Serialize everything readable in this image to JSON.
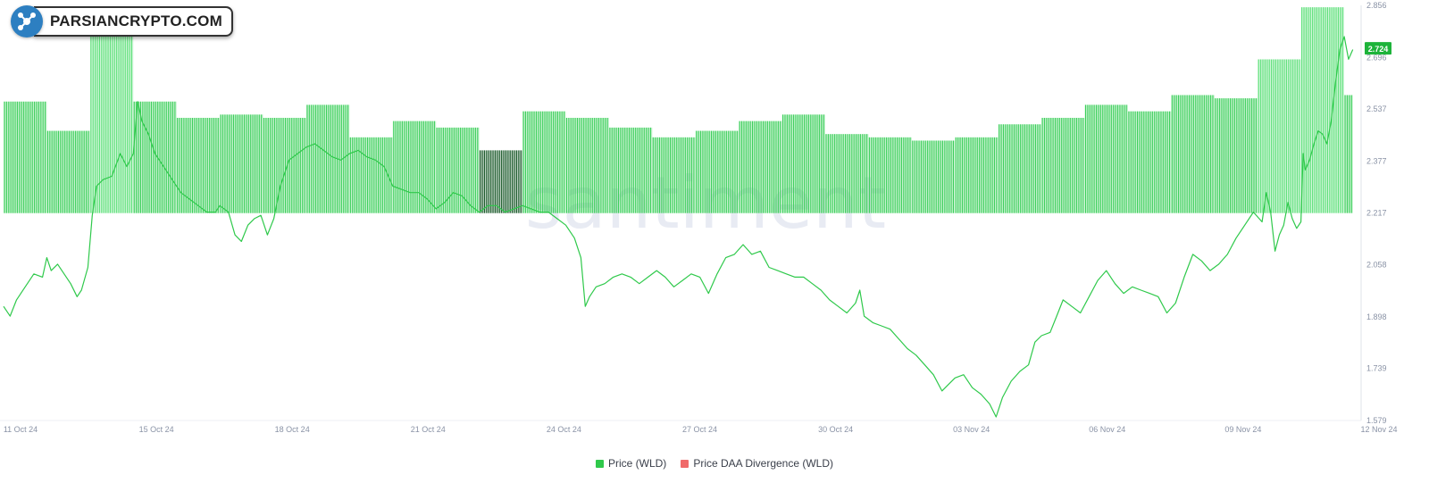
{
  "brand": {
    "text": "PARSIANCRYPTO.COM"
  },
  "watermark": "santiment",
  "colors": {
    "price": "#2fc94b",
    "price_label_bg": "#1db33a",
    "divergence_positive": "#3ccf5b",
    "divergence_strong": "#5ee07a",
    "divergence_dark": "#1a5a2a",
    "divergence_negative": "#f06a6a"
  },
  "chart_data": {
    "type": "line",
    "title": "",
    "xlabel": "",
    "ylabel": "",
    "x_ticks": [
      "11 Oct 24",
      "15 Oct 24",
      "18 Oct 24",
      "21 Oct 24",
      "24 Oct 24",
      "27 Oct 24",
      "30 Oct 24",
      "03 Nov 24",
      "06 Nov 24",
      "09 Nov 24",
      "12 Nov 24"
    ],
    "y_ticks": [
      "2.856",
      "2.696",
      "2.537",
      "2.377",
      "2.217",
      "2.058",
      "1.898",
      "1.739",
      "1.579"
    ],
    "ylim": [
      1.579,
      2.856
    ],
    "current_price_label": "2.724",
    "legend_position": "bottom-center",
    "series": [
      {
        "name": "Price (WLD)",
        "color": "#2fc94b",
        "points": [
          [
            0,
            1.93
          ],
          [
            0.15,
            1.9
          ],
          [
            0.3,
            1.95
          ],
          [
            0.5,
            1.99
          ],
          [
            0.7,
            2.03
          ],
          [
            0.9,
            2.02
          ],
          [
            1.0,
            2.08
          ],
          [
            1.1,
            2.04
          ],
          [
            1.25,
            2.06
          ],
          [
            1.4,
            2.03
          ],
          [
            1.55,
            2.0
          ],
          [
            1.7,
            1.96
          ],
          [
            1.8,
            1.98
          ],
          [
            1.95,
            2.05
          ],
          [
            2.05,
            2.21
          ],
          [
            2.15,
            2.3
          ],
          [
            2.3,
            2.32
          ],
          [
            2.5,
            2.33
          ],
          [
            2.7,
            2.4
          ],
          [
            2.85,
            2.36
          ],
          [
            3.0,
            2.4
          ],
          [
            3.1,
            2.56
          ],
          [
            3.2,
            2.5
          ],
          [
            3.35,
            2.46
          ],
          [
            3.5,
            2.4
          ],
          [
            3.7,
            2.36
          ],
          [
            3.9,
            2.32
          ],
          [
            4.1,
            2.28
          ],
          [
            4.3,
            2.26
          ],
          [
            4.5,
            2.24
          ],
          [
            4.7,
            2.22
          ],
          [
            4.9,
            2.22
          ],
          [
            5.0,
            2.24
          ],
          [
            5.2,
            2.22
          ],
          [
            5.35,
            2.15
          ],
          [
            5.5,
            2.13
          ],
          [
            5.65,
            2.18
          ],
          [
            5.8,
            2.2
          ],
          [
            5.95,
            2.21
          ],
          [
            6.1,
            2.15
          ],
          [
            6.25,
            2.2
          ],
          [
            6.4,
            2.3
          ],
          [
            6.6,
            2.38
          ],
          [
            6.8,
            2.4
          ],
          [
            7.0,
            2.42
          ],
          [
            7.2,
            2.43
          ],
          [
            7.4,
            2.41
          ],
          [
            7.6,
            2.39
          ],
          [
            7.8,
            2.38
          ],
          [
            8.0,
            2.4
          ],
          [
            8.2,
            2.41
          ],
          [
            8.4,
            2.39
          ],
          [
            8.6,
            2.38
          ],
          [
            8.8,
            2.36
          ],
          [
            9.0,
            2.3
          ],
          [
            9.2,
            2.29
          ],
          [
            9.4,
            2.28
          ],
          [
            9.6,
            2.28
          ],
          [
            9.8,
            2.26
          ],
          [
            10.0,
            2.23
          ],
          [
            10.2,
            2.25
          ],
          [
            10.4,
            2.28
          ],
          [
            10.6,
            2.27
          ],
          [
            10.8,
            2.24
          ],
          [
            11.0,
            2.22
          ],
          [
            11.2,
            2.24
          ],
          [
            11.4,
            2.24
          ],
          [
            11.6,
            2.22
          ],
          [
            11.8,
            2.23
          ],
          [
            12.0,
            2.24
          ],
          [
            12.2,
            2.23
          ],
          [
            12.4,
            2.22
          ],
          [
            12.6,
            2.22
          ],
          [
            12.8,
            2.2
          ],
          [
            13.0,
            2.18
          ],
          [
            13.2,
            2.14
          ],
          [
            13.35,
            2.08
          ],
          [
            13.45,
            1.93
          ],
          [
            13.55,
            1.96
          ],
          [
            13.7,
            1.99
          ],
          [
            13.9,
            2.0
          ],
          [
            14.1,
            2.02
          ],
          [
            14.3,
            2.03
          ],
          [
            14.5,
            2.02
          ],
          [
            14.7,
            2.0
          ],
          [
            14.9,
            2.02
          ],
          [
            15.1,
            2.04
          ],
          [
            15.3,
            2.02
          ],
          [
            15.5,
            1.99
          ],
          [
            15.7,
            2.01
          ],
          [
            15.9,
            2.03
          ],
          [
            16.1,
            2.02
          ],
          [
            16.3,
            1.97
          ],
          [
            16.5,
            2.03
          ],
          [
            16.7,
            2.08
          ],
          [
            16.9,
            2.09
          ],
          [
            17.1,
            2.12
          ],
          [
            17.3,
            2.09
          ],
          [
            17.5,
            2.1
          ],
          [
            17.7,
            2.05
          ],
          [
            17.9,
            2.04
          ],
          [
            18.1,
            2.03
          ],
          [
            18.3,
            2.02
          ],
          [
            18.5,
            2.02
          ],
          [
            18.7,
            2.0
          ],
          [
            18.9,
            1.98
          ],
          [
            19.1,
            1.95
          ],
          [
            19.3,
            1.93
          ],
          [
            19.5,
            1.91
          ],
          [
            19.7,
            1.94
          ],
          [
            19.8,
            1.98
          ],
          [
            19.9,
            1.9
          ],
          [
            20.1,
            1.88
          ],
          [
            20.3,
            1.87
          ],
          [
            20.5,
            1.86
          ],
          [
            20.7,
            1.83
          ],
          [
            20.9,
            1.8
          ],
          [
            21.1,
            1.78
          ],
          [
            21.3,
            1.75
          ],
          [
            21.5,
            1.72
          ],
          [
            21.7,
            1.67
          ],
          [
            21.85,
            1.69
          ],
          [
            22.0,
            1.71
          ],
          [
            22.2,
            1.72
          ],
          [
            22.4,
            1.68
          ],
          [
            22.6,
            1.66
          ],
          [
            22.8,
            1.63
          ],
          [
            22.95,
            1.59
          ],
          [
            23.1,
            1.65
          ],
          [
            23.3,
            1.7
          ],
          [
            23.5,
            1.73
          ],
          [
            23.7,
            1.75
          ],
          [
            23.85,
            1.82
          ],
          [
            24.0,
            1.84
          ],
          [
            24.2,
            1.85
          ],
          [
            24.35,
            1.9
          ],
          [
            24.5,
            1.95
          ],
          [
            24.7,
            1.93
          ],
          [
            24.9,
            1.91
          ],
          [
            25.1,
            1.96
          ],
          [
            25.3,
            2.01
          ],
          [
            25.5,
            2.04
          ],
          [
            25.7,
            2.0
          ],
          [
            25.9,
            1.97
          ],
          [
            26.1,
            1.99
          ],
          [
            26.3,
            1.98
          ],
          [
            26.5,
            1.97
          ],
          [
            26.7,
            1.96
          ],
          [
            26.9,
            1.91
          ],
          [
            27.1,
            1.94
          ],
          [
            27.3,
            2.02
          ],
          [
            27.5,
            2.09
          ],
          [
            27.7,
            2.07
          ],
          [
            27.9,
            2.04
          ],
          [
            28.1,
            2.06
          ],
          [
            28.3,
            2.09
          ],
          [
            28.5,
            2.14
          ],
          [
            28.7,
            2.18
          ],
          [
            28.9,
            2.22
          ],
          [
            29.1,
            2.19
          ],
          [
            29.2,
            2.28
          ],
          [
            29.3,
            2.22
          ],
          [
            29.4,
            2.1
          ],
          [
            29.5,
            2.15
          ],
          [
            29.6,
            2.18
          ],
          [
            29.7,
            2.25
          ],
          [
            29.8,
            2.2
          ],
          [
            29.9,
            2.17
          ],
          [
            30.0,
            2.19
          ],
          [
            30.05,
            2.4
          ],
          [
            30.1,
            2.35
          ],
          [
            30.2,
            2.38
          ],
          [
            30.3,
            2.43
          ],
          [
            30.4,
            2.47
          ],
          [
            30.5,
            2.46
          ],
          [
            30.6,
            2.43
          ],
          [
            30.7,
            2.5
          ],
          [
            30.8,
            2.62
          ],
          [
            30.9,
            2.72
          ],
          [
            31.0,
            2.76
          ],
          [
            31.1,
            2.69
          ],
          [
            31.2,
            2.72
          ]
        ]
      },
      {
        "name": "Price DAA Divergence (WLD)",
        "color": "#f06a6a",
        "bars": [
          [
            0,
            1,
            2.56
          ],
          [
            1,
            2,
            2.47
          ],
          [
            2,
            3,
            2.77
          ],
          [
            3,
            4,
            2.56
          ],
          [
            4,
            5,
            2.51
          ],
          [
            5,
            6,
            2.52
          ],
          [
            6,
            7,
            2.51
          ],
          [
            7,
            8,
            2.55
          ],
          [
            8,
            9,
            2.45
          ],
          [
            9,
            10,
            2.5
          ],
          [
            10,
            11,
            2.48
          ],
          [
            11,
            12,
            2.41
          ],
          [
            12,
            13,
            2.53
          ],
          [
            13,
            14,
            2.51
          ],
          [
            14,
            15,
            2.48
          ],
          [
            15,
            16,
            2.45
          ],
          [
            16,
            17,
            2.47
          ],
          [
            17,
            18,
            2.5
          ],
          [
            18,
            19,
            2.52
          ],
          [
            19,
            20,
            2.46
          ],
          [
            20,
            21,
            2.45
          ],
          [
            21,
            22,
            2.44
          ],
          [
            22,
            23,
            2.45
          ],
          [
            23,
            24,
            2.49
          ],
          [
            24,
            25,
            2.51
          ],
          [
            25,
            26,
            2.55
          ],
          [
            26,
            27,
            2.53
          ],
          [
            27,
            28,
            2.58
          ],
          [
            28,
            29,
            2.57
          ],
          [
            29,
            30,
            2.69
          ],
          [
            30,
            31,
            2.85
          ],
          [
            31,
            31.2,
            2.58
          ]
        ]
      }
    ]
  }
}
